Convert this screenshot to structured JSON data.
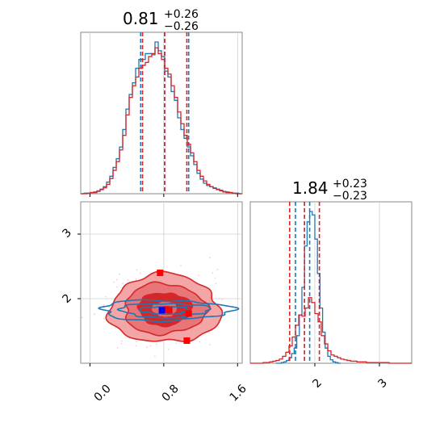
{
  "chart_data": [
    {
      "panel": "histogram-param1",
      "type": "histogram",
      "title": {
        "main": "0.81",
        "sup": "+0.26",
        "sub": "−0.26"
      },
      "xlim": [
        -0.1,
        1.65
      ],
      "series": [
        {
          "color": "#1f77b4",
          "bin_start": -0.1,
          "bin_width": 0.035,
          "values": [
            0,
            1,
            1,
            2,
            3,
            5,
            8,
            12,
            20,
            30,
            45,
            60,
            80,
            110,
            145,
            170,
            190,
            215,
            230,
            230,
            240,
            240,
            238,
            260,
            245,
            235,
            210,
            200,
            175,
            160,
            130,
            110,
            95,
            80,
            65,
            50,
            35,
            25,
            18,
            14,
            12,
            10,
            8,
            6,
            4,
            3,
            2,
            1,
            1,
            0
          ],
          "quantiles": [
            0.55,
            0.81,
            1.07
          ]
        },
        {
          "color": "#d62728",
          "bin_start": -0.1,
          "bin_width": 0.035,
          "values": [
            0,
            0,
            1,
            2,
            2,
            4,
            7,
            10,
            16,
            26,
            40,
            55,
            75,
            100,
            135,
            165,
            185,
            200,
            215,
            220,
            225,
            235,
            240,
            250,
            240,
            230,
            215,
            205,
            185,
            165,
            140,
            120,
            100,
            85,
            70,
            55,
            40,
            30,
            22,
            16,
            12,
            9,
            7,
            5,
            3,
            2,
            2,
            1,
            0,
            0
          ],
          "quantiles": [
            0.57,
            0.81,
            1.05
          ]
        }
      ]
    },
    {
      "panel": "histogram-param2",
      "type": "histogram",
      "title": {
        "main": "1.84",
        "sup": "+0.23",
        "sub": "−0.23"
      },
      "xlim": [
        1.0,
        3.5
      ],
      "series": [
        {
          "color": "#1f77b4",
          "bin_start": 1.4,
          "bin_width": 0.04,
          "values": [
            0,
            0,
            1,
            2,
            4,
            8,
            14,
            22,
            40,
            70,
            110,
            170,
            205,
            220,
            215,
            180,
            130,
            80,
            45,
            22,
            10,
            5,
            2,
            1,
            0
          ],
          "quantiles": [
            1.7,
            1.84,
            1.92
          ]
        },
        {
          "color": "#d62728",
          "bin_start": 1.0,
          "bin_width": 0.05,
          "values": [
            0,
            0,
            0,
            0,
            1,
            1,
            2,
            3,
            4,
            6,
            10,
            16,
            25,
            38,
            55,
            70,
            68,
            80,
            95,
            88,
            72,
            60,
            40,
            28,
            18,
            12,
            10,
            8,
            6,
            5,
            4,
            3,
            3,
            2,
            2,
            2,
            1,
            1,
            1,
            1,
            1,
            1,
            1,
            0,
            0,
            0,
            0,
            0,
            0,
            0
          ],
          "quantiles": [
            1.61,
            1.84,
            2.07
          ]
        }
      ]
    },
    {
      "panel": "contour-2d",
      "type": "scatter",
      "xlim": [
        -0.1,
        1.65
      ],
      "ylim": [
        1.0,
        3.5
      ],
      "red": {
        "center": [
          0.81,
          1.84
        ],
        "sx": 0.26,
        "sy": 0.23
      },
      "blue": {
        "center": [
          0.81,
          1.82
        ],
        "sx": 0.4,
        "sy": 0.09
      },
      "red_markers": [
        [
          0.76,
          2.4
        ],
        [
          0.86,
          1.82
        ],
        [
          1.07,
          1.77
        ],
        [
          1.05,
          1.35
        ],
        [
          0.82,
          1.83
        ]
      ],
      "blue_markers": [
        [
          0.78,
          1.82
        ]
      ]
    }
  ],
  "ticks": {
    "bottom_x": [
      "0.0",
      "0.8",
      "1.6"
    ],
    "left_y": [
      "2",
      "3"
    ],
    "right_x": [
      "2",
      "3"
    ]
  },
  "colors": {
    "red": "#d62728",
    "blue": "#1f77b4",
    "red_fill_light": "#f4a6a7",
    "red_fill_mid": "#e87577",
    "red_fill_dark": "#d62728"
  }
}
